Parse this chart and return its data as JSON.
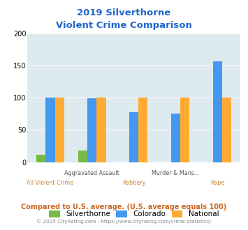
{
  "title_line1": "2019 Silverthorne",
  "title_line2": "Violent Crime Comparison",
  "categories": [
    "All Violent Crime",
    "Aggravated Assault",
    "Robbery",
    "Murder & Mans...",
    "Rape"
  ],
  "series": {
    "Silverthorne": [
      12,
      18,
      0,
      0,
      0
    ],
    "Colorado": [
      100,
      99,
      78,
      75,
      157
    ],
    "National": [
      100,
      100,
      100,
      100,
      100
    ]
  },
  "colors": {
    "Silverthorne": "#77bb44",
    "Colorado": "#4499ee",
    "National": "#ffaa33"
  },
  "ylim": [
    0,
    200
  ],
  "yticks": [
    0,
    50,
    100,
    150,
    200
  ],
  "plot_bg_color": "#ddeaf0",
  "fig_bg_color": "#ffffff",
  "title_color": "#2266cc",
  "footer_text": "Compared to U.S. average. (U.S. average equals 100)",
  "footer_color": "#cc6622",
  "credit_text": "© 2025 CityRating.com - https://www.cityrating.com/crime-statistics/",
  "credit_color": "#888888",
  "grid_color": "#ffffff",
  "bar_width": 0.22,
  "row1_labels": {
    "1": "Aggravated Assault",
    "3": "Murder & Mans..."
  },
  "row2_labels": {
    "0": "All Violent Crime",
    "2": "Robbery",
    "4": "Rape"
  },
  "row1_color": "#555555",
  "row2_color": "#cc8844"
}
